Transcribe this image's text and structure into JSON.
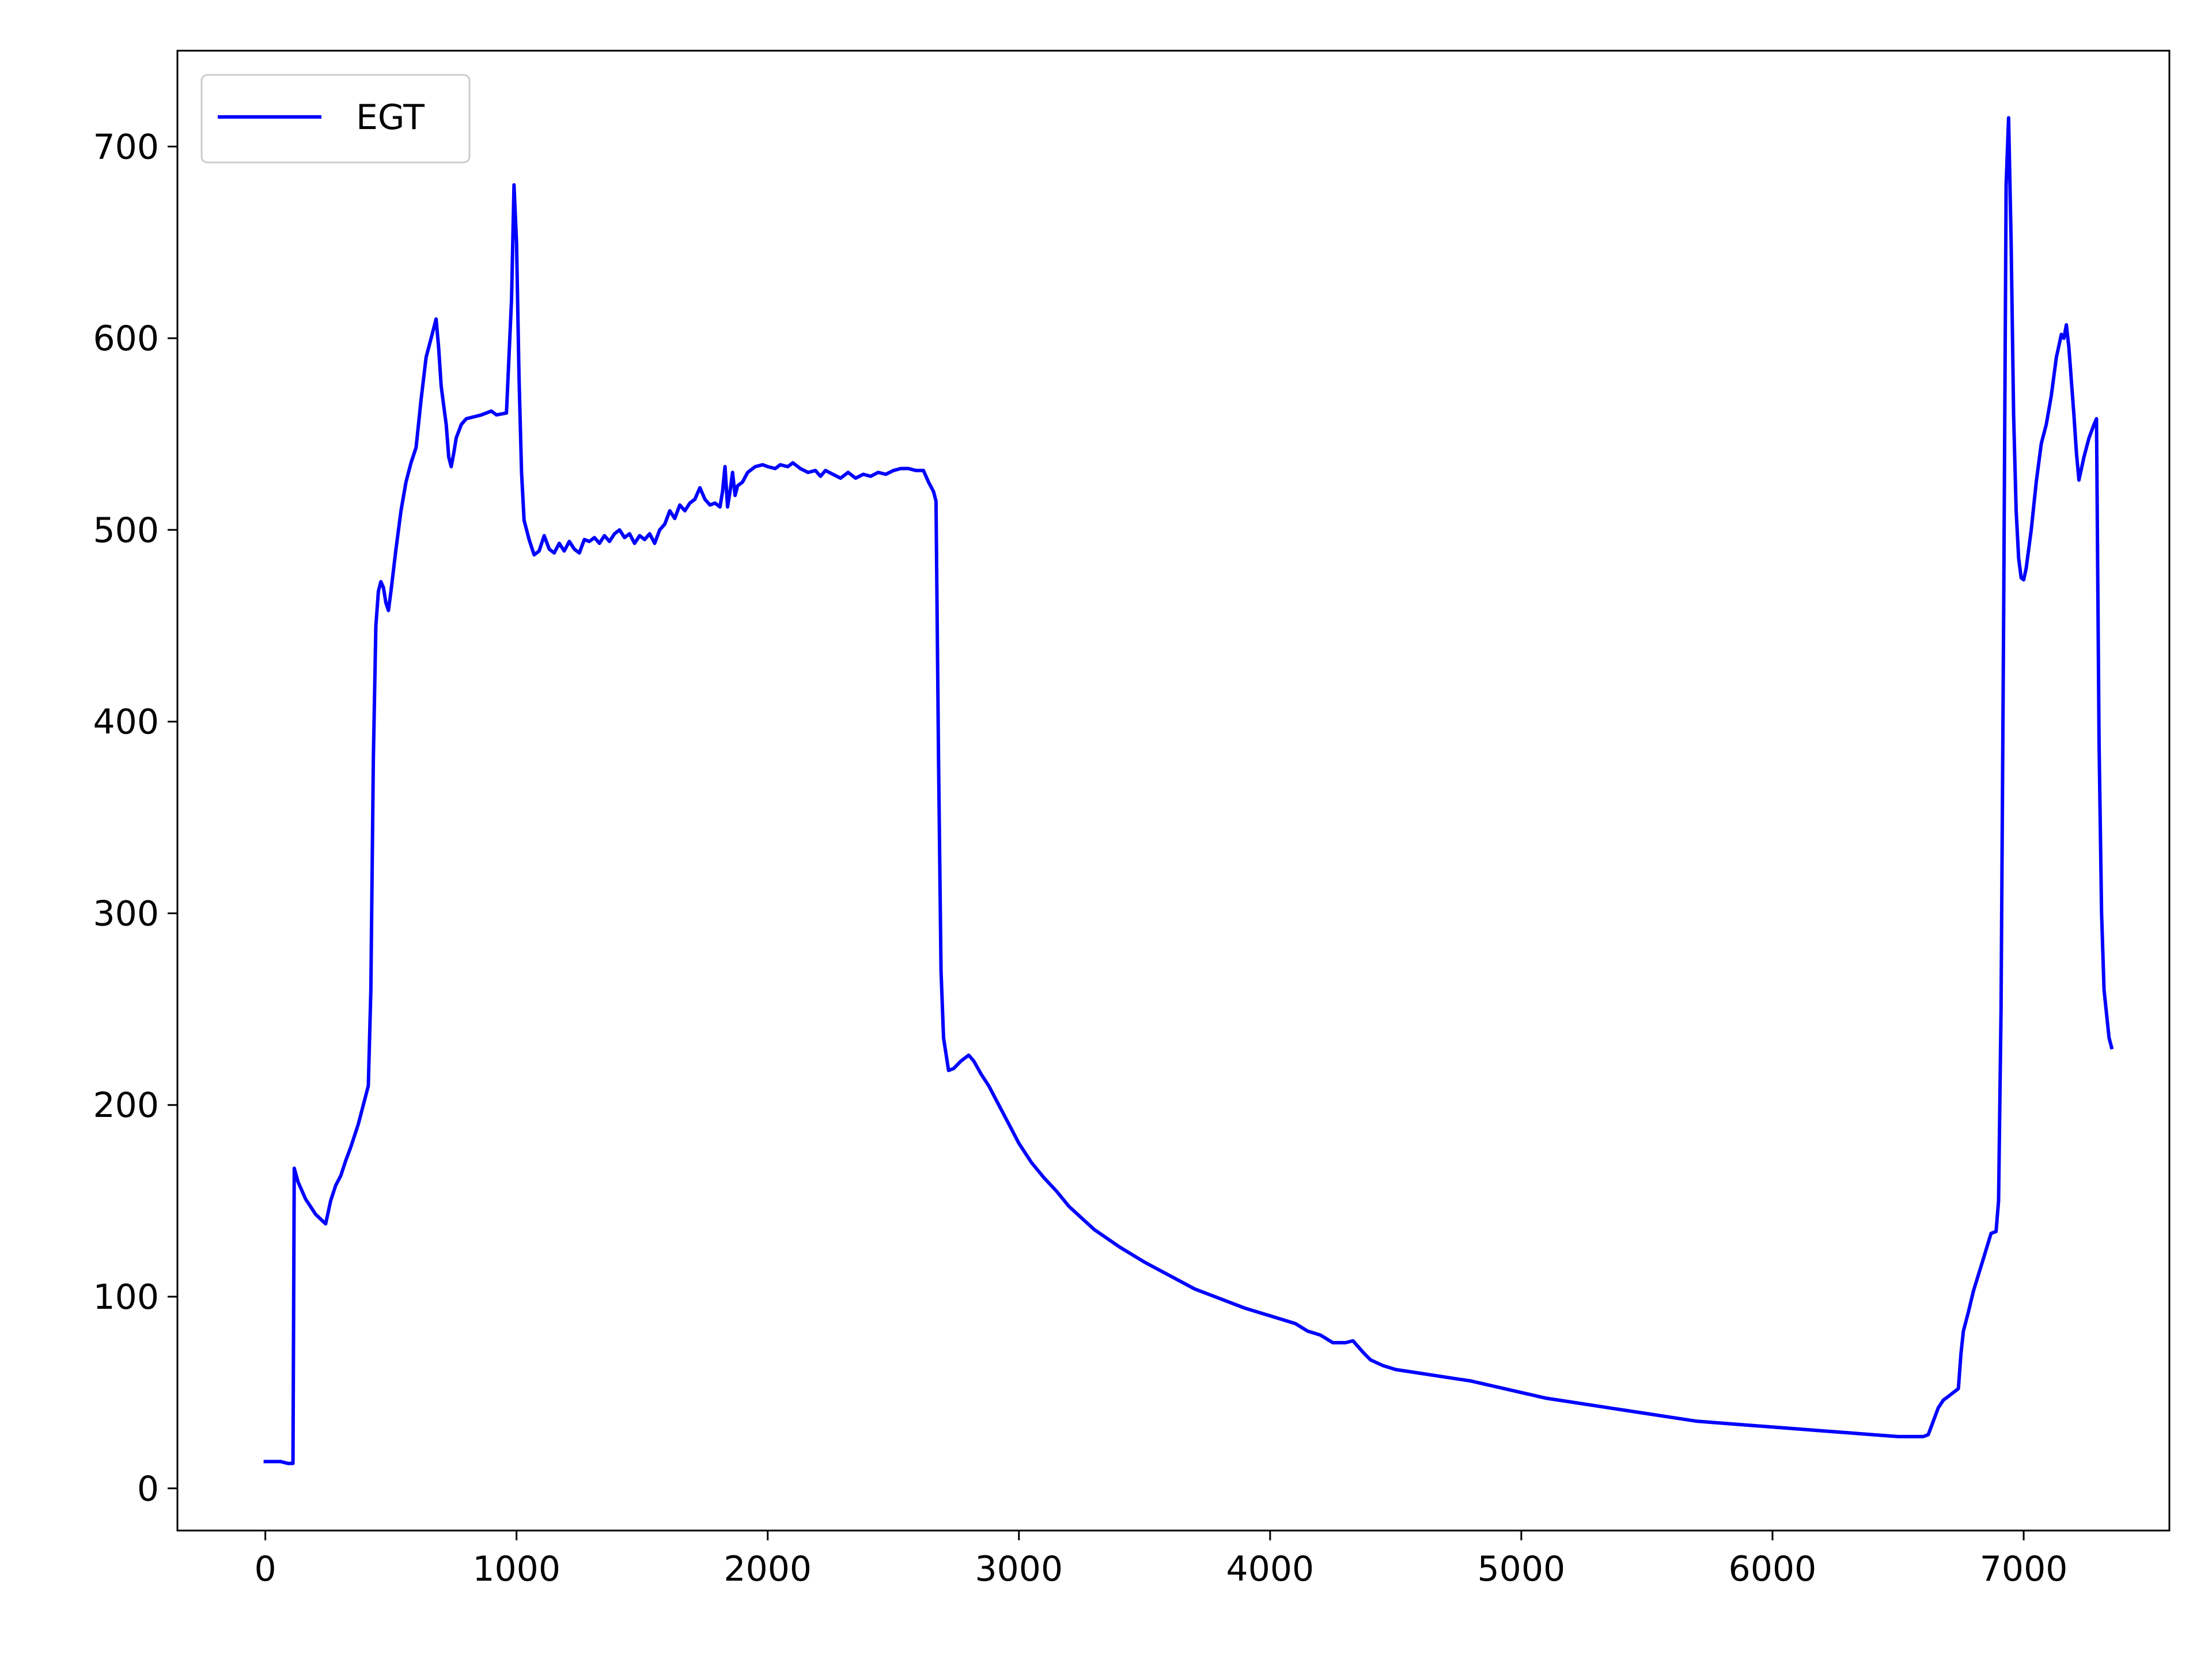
{
  "chart_data": {
    "type": "line",
    "title": "",
    "xlabel": "",
    "ylabel": "",
    "xlim": [
      -350,
      7580
    ],
    "ylim": [
      -22,
      750
    ],
    "xticks": [
      0,
      1000,
      2000,
      3000,
      4000,
      5000,
      6000,
      7000
    ],
    "yticks": [
      0,
      100,
      200,
      300,
      400,
      500,
      600,
      700
    ],
    "grid": false,
    "legend_position": "top-left",
    "series": [
      {
        "name": "EGT",
        "color": "#0000ff",
        "points": [
          [
            0,
            14
          ],
          [
            60,
            14
          ],
          [
            90,
            13
          ],
          [
            110,
            13
          ],
          [
            115,
            167
          ],
          [
            130,
            160
          ],
          [
            160,
            151
          ],
          [
            200,
            143
          ],
          [
            240,
            138
          ],
          [
            260,
            150
          ],
          [
            280,
            158
          ],
          [
            300,
            163
          ],
          [
            320,
            171
          ],
          [
            340,
            178
          ],
          [
            370,
            190
          ],
          [
            390,
            200
          ],
          [
            410,
            210
          ],
          [
            420,
            260
          ],
          [
            430,
            380
          ],
          [
            440,
            450
          ],
          [
            450,
            468
          ],
          [
            460,
            473
          ],
          [
            470,
            470
          ],
          [
            480,
            462
          ],
          [
            490,
            458
          ],
          [
            500,
            468
          ],
          [
            520,
            490
          ],
          [
            540,
            510
          ],
          [
            560,
            525
          ],
          [
            580,
            535
          ],
          [
            600,
            543
          ],
          [
            620,
            568
          ],
          [
            640,
            590
          ],
          [
            660,
            600
          ],
          [
            680,
            610
          ],
          [
            690,
            595
          ],
          [
            700,
            575
          ],
          [
            710,
            565
          ],
          [
            720,
            555
          ],
          [
            730,
            538
          ],
          [
            740,
            533
          ],
          [
            750,
            540
          ],
          [
            760,
            548
          ],
          [
            780,
            555
          ],
          [
            800,
            558
          ],
          [
            830,
            559
          ],
          [
            860,
            560
          ],
          [
            880,
            561
          ],
          [
            900,
            562
          ],
          [
            920,
            560
          ],
          [
            960,
            561
          ],
          [
            980,
            620
          ],
          [
            990,
            680
          ],
          [
            1000,
            650
          ],
          [
            1010,
            580
          ],
          [
            1020,
            530
          ],
          [
            1030,
            505
          ],
          [
            1050,
            495
          ],
          [
            1070,
            487
          ],
          [
            1090,
            489
          ],
          [
            1110,
            497
          ],
          [
            1130,
            490
          ],
          [
            1150,
            488
          ],
          [
            1170,
            493
          ],
          [
            1190,
            489
          ],
          [
            1210,
            494
          ],
          [
            1230,
            490
          ],
          [
            1250,
            488
          ],
          [
            1270,
            495
          ],
          [
            1290,
            494
          ],
          [
            1310,
            496
          ],
          [
            1330,
            493
          ],
          [
            1350,
            497
          ],
          [
            1370,
            494
          ],
          [
            1390,
            498
          ],
          [
            1410,
            500
          ],
          [
            1430,
            496
          ],
          [
            1450,
            498
          ],
          [
            1470,
            493
          ],
          [
            1490,
            497
          ],
          [
            1510,
            495
          ],
          [
            1530,
            498
          ],
          [
            1550,
            493
          ],
          [
            1570,
            500
          ],
          [
            1590,
            503
          ],
          [
            1610,
            510
          ],
          [
            1630,
            506
          ],
          [
            1650,
            513
          ],
          [
            1670,
            510
          ],
          [
            1690,
            514
          ],
          [
            1710,
            516
          ],
          [
            1730,
            522
          ],
          [
            1750,
            516
          ],
          [
            1770,
            513
          ],
          [
            1790,
            514
          ],
          [
            1810,
            512
          ],
          [
            1820,
            520
          ],
          [
            1830,
            533
          ],
          [
            1840,
            512
          ],
          [
            1850,
            520
          ],
          [
            1860,
            530
          ],
          [
            1870,
            518
          ],
          [
            1880,
            523
          ],
          [
            1900,
            525
          ],
          [
            1920,
            530
          ],
          [
            1950,
            533
          ],
          [
            1980,
            534
          ],
          [
            2000,
            533
          ],
          [
            2030,
            532
          ],
          [
            2050,
            534
          ],
          [
            2080,
            533
          ],
          [
            2100,
            535
          ],
          [
            2130,
            532
          ],
          [
            2160,
            530
          ],
          [
            2190,
            531
          ],
          [
            2210,
            528
          ],
          [
            2230,
            531
          ],
          [
            2260,
            529
          ],
          [
            2290,
            527
          ],
          [
            2320,
            530
          ],
          [
            2350,
            527
          ],
          [
            2380,
            529
          ],
          [
            2410,
            528
          ],
          [
            2440,
            530
          ],
          [
            2470,
            529
          ],
          [
            2500,
            531
          ],
          [
            2530,
            532
          ],
          [
            2560,
            532
          ],
          [
            2590,
            531
          ],
          [
            2620,
            531
          ],
          [
            2640,
            525
          ],
          [
            2660,
            520
          ],
          [
            2670,
            515
          ],
          [
            2680,
            380
          ],
          [
            2690,
            270
          ],
          [
            2700,
            235
          ],
          [
            2720,
            218
          ],
          [
            2740,
            219
          ],
          [
            2770,
            223
          ],
          [
            2800,
            226
          ],
          [
            2820,
            223
          ],
          [
            2850,
            216
          ],
          [
            2880,
            210
          ],
          [
            2920,
            200
          ],
          [
            2960,
            190
          ],
          [
            3000,
            180
          ],
          [
            3050,
            170
          ],
          [
            3100,
            162
          ],
          [
            3150,
            155
          ],
          [
            3200,
            147
          ],
          [
            3250,
            141
          ],
          [
            3300,
            135
          ],
          [
            3400,
            126
          ],
          [
            3500,
            118
          ],
          [
            3600,
            111
          ],
          [
            3700,
            104
          ],
          [
            3800,
            99
          ],
          [
            3900,
            94
          ],
          [
            4000,
            90
          ],
          [
            4100,
            86
          ],
          [
            4150,
            82
          ],
          [
            4200,
            80
          ],
          [
            4250,
            76
          ],
          [
            4300,
            76
          ],
          [
            4330,
            77
          ],
          [
            4370,
            71
          ],
          [
            4400,
            67
          ],
          [
            4450,
            64
          ],
          [
            4500,
            62
          ],
          [
            4600,
            60
          ],
          [
            4700,
            58
          ],
          [
            4800,
            56
          ],
          [
            4900,
            53
          ],
          [
            5000,
            50
          ],
          [
            5100,
            47
          ],
          [
            5200,
            45
          ],
          [
            5300,
            43
          ],
          [
            5400,
            41
          ],
          [
            5500,
            39
          ],
          [
            5600,
            37
          ],
          [
            5700,
            35
          ],
          [
            5800,
            34
          ],
          [
            5900,
            33
          ],
          [
            6000,
            32
          ],
          [
            6100,
            31
          ],
          [
            6200,
            30
          ],
          [
            6300,
            29
          ],
          [
            6400,
            28
          ],
          [
            6500,
            27
          ],
          [
            6600,
            27
          ],
          [
            6620,
            28
          ],
          [
            6640,
            35
          ],
          [
            6660,
            42
          ],
          [
            6680,
            46
          ],
          [
            6700,
            48
          ],
          [
            6720,
            50
          ],
          [
            6740,
            52
          ],
          [
            6750,
            70
          ],
          [
            6760,
            82
          ],
          [
            6780,
            92
          ],
          [
            6800,
            103
          ],
          [
            6840,
            120
          ],
          [
            6870,
            133
          ],
          [
            6890,
            134
          ],
          [
            6900,
            150
          ],
          [
            6910,
            250
          ],
          [
            6920,
            450
          ],
          [
            6930,
            680
          ],
          [
            6940,
            715
          ],
          [
            6950,
            650
          ],
          [
            6960,
            560
          ],
          [
            6970,
            510
          ],
          [
            6980,
            485
          ],
          [
            6990,
            475
          ],
          [
            7000,
            474
          ],
          [
            7010,
            480
          ],
          [
            7030,
            500
          ],
          [
            7050,
            525
          ],
          [
            7070,
            545
          ],
          [
            7090,
            555
          ],
          [
            7110,
            570
          ],
          [
            7130,
            590
          ],
          [
            7150,
            602
          ],
          [
            7160,
            600
          ],
          [
            7170,
            607
          ],
          [
            7180,
            595
          ],
          [
            7200,
            560
          ],
          [
            7210,
            540
          ],
          [
            7220,
            526
          ],
          [
            7240,
            538
          ],
          [
            7260,
            548
          ],
          [
            7280,
            555
          ],
          [
            7290,
            558
          ],
          [
            7300,
            390
          ],
          [
            7310,
            300
          ],
          [
            7320,
            260
          ],
          [
            7340,
            235
          ],
          [
            7350,
            230
          ]
        ]
      }
    ]
  }
}
